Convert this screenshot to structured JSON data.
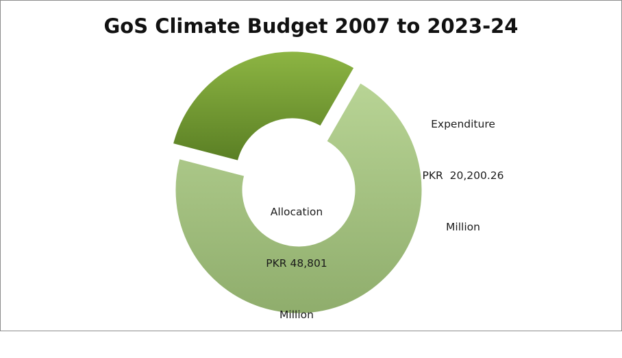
{
  "chart_data": {
    "type": "pie",
    "variant": "donut",
    "title": "GoS Climate Budget 2007 to 2023-24",
    "categories": [
      "Allocation",
      "Expenditure"
    ],
    "values": [
      48801,
      20200.26
    ],
    "units": "PKR Million",
    "exploded": [
      "Expenditure"
    ],
    "legend": "none",
    "colors": [
      "#9fbf7a",
      "#6f9a32"
    ],
    "data_labels": [
      {
        "line1": "Allocation",
        "line2": "PKR 48,801",
        "line3": "Million"
      },
      {
        "line1": "Expenditure",
        "line2": "PKR  20,200.26",
        "line3": "Million"
      }
    ]
  }
}
